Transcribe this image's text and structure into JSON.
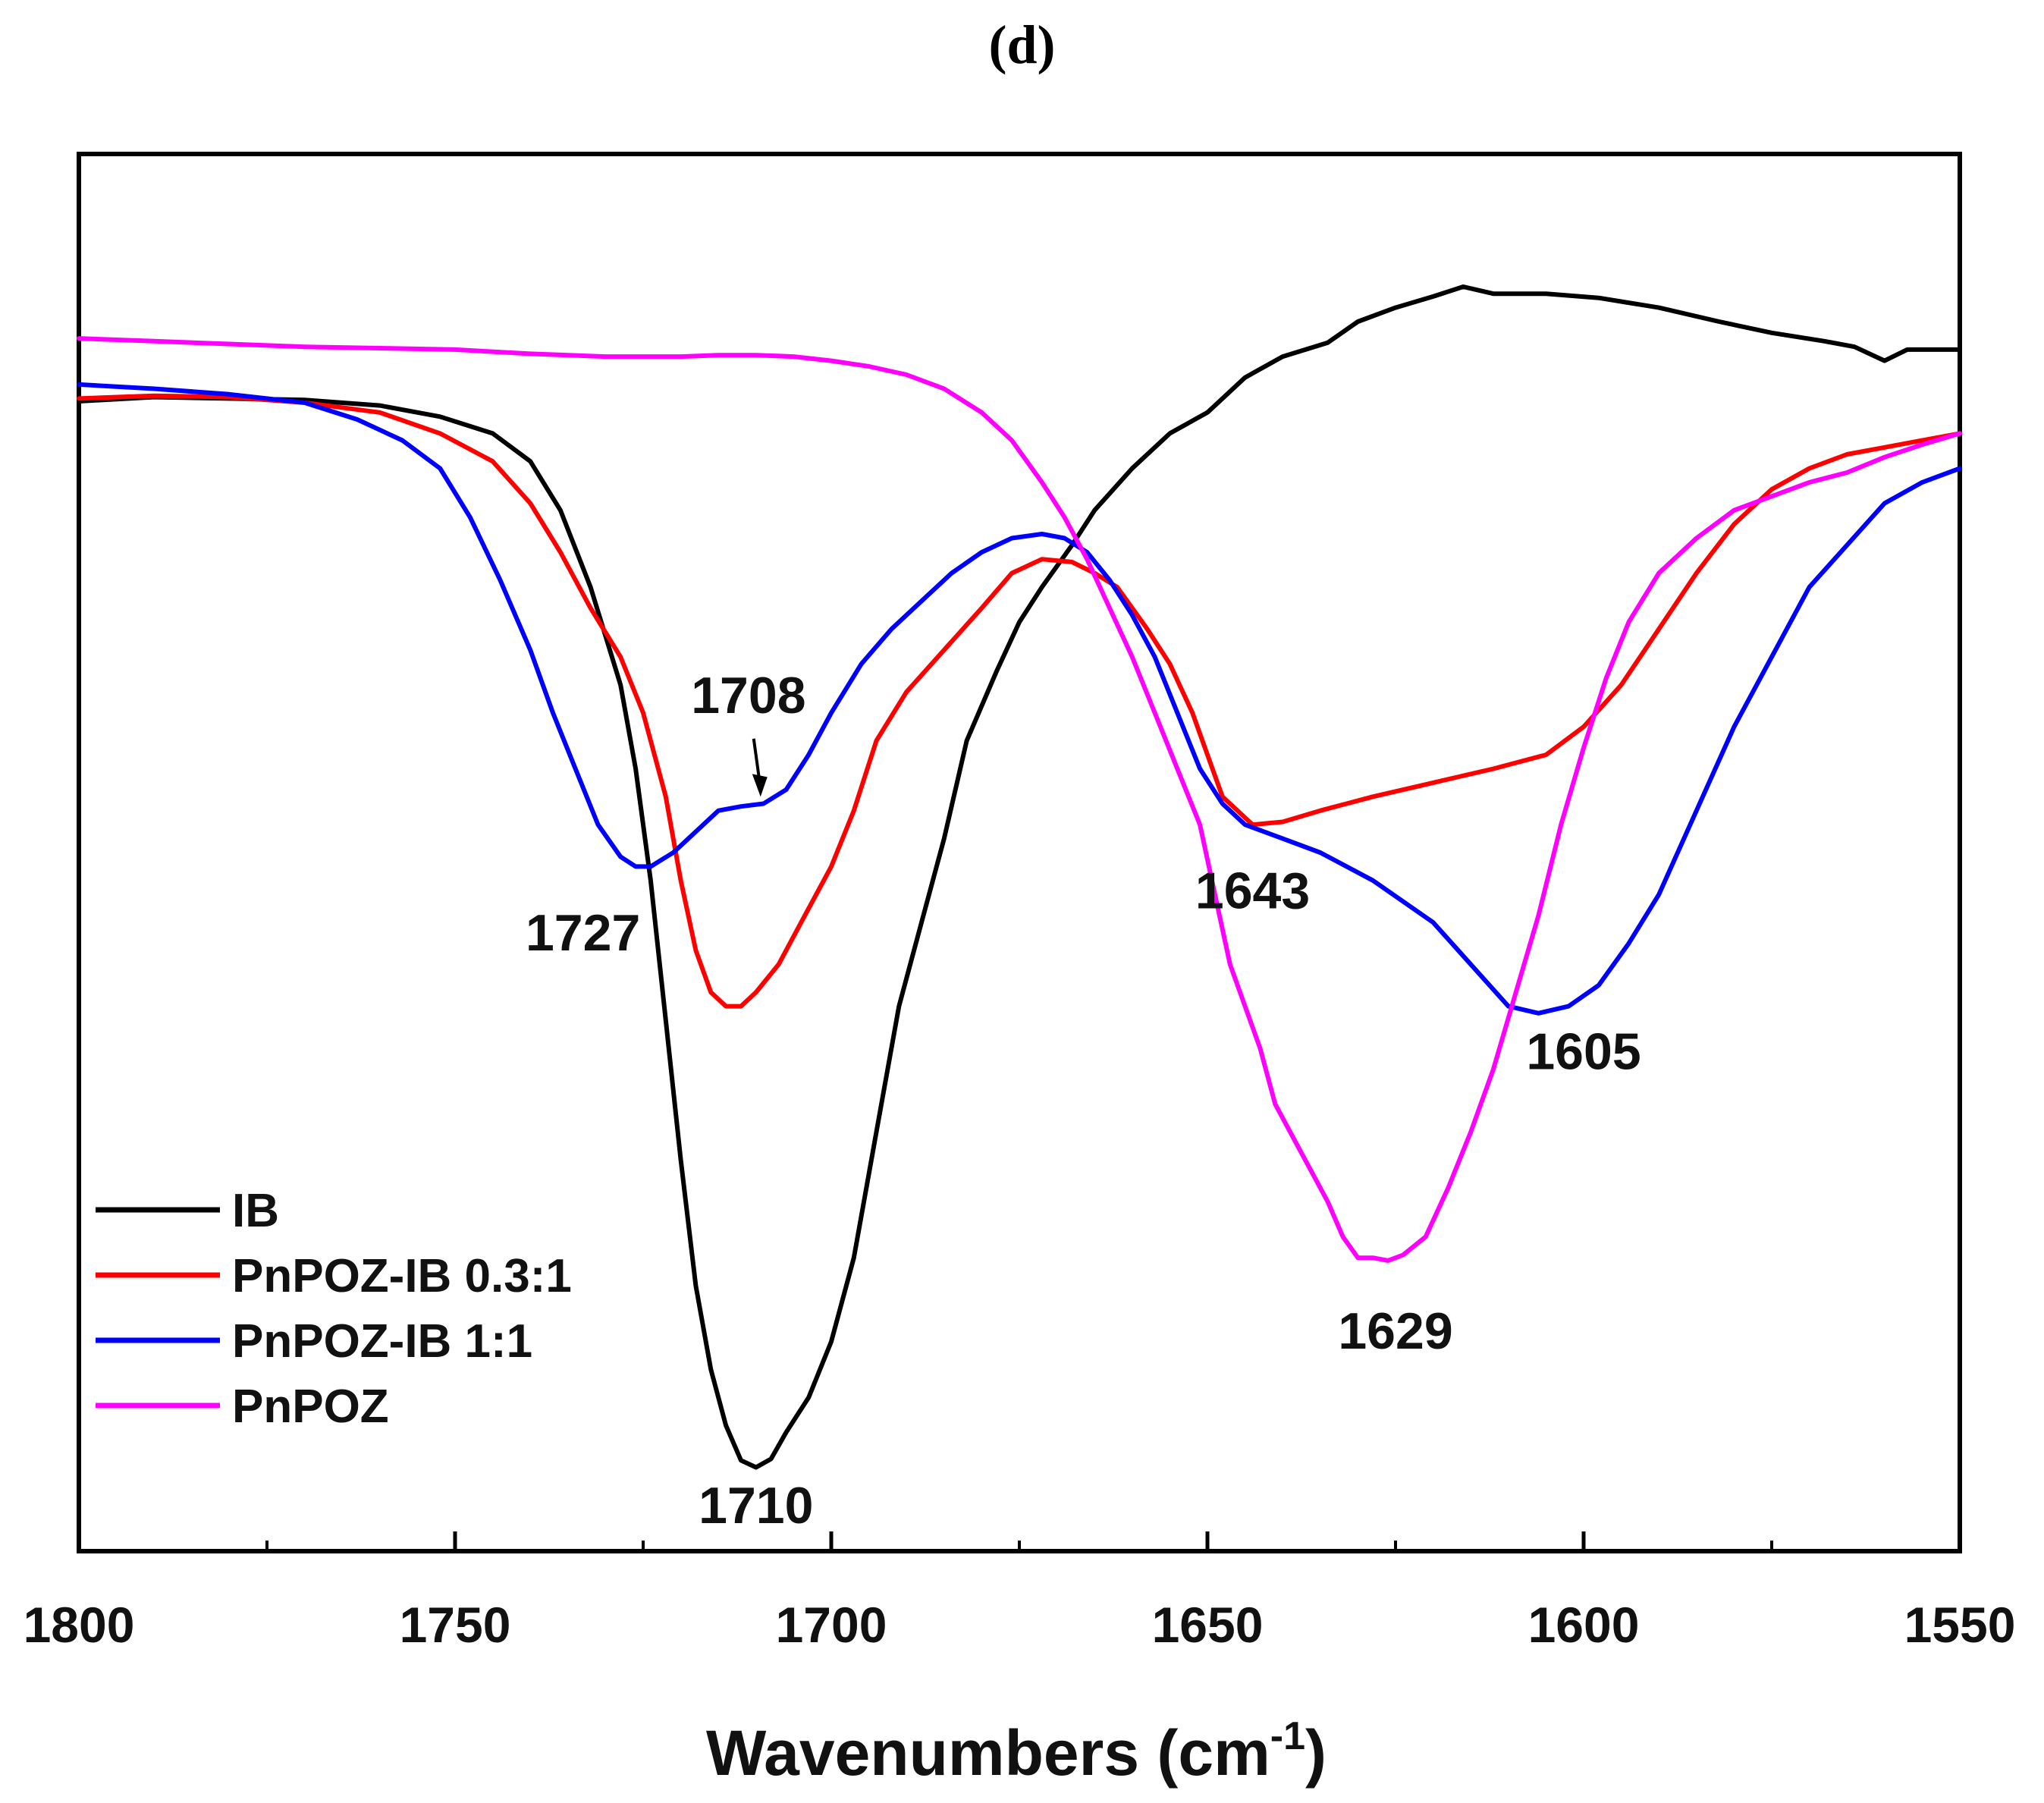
{
  "panel_label": "(d)",
  "chart_data": {
    "type": "line",
    "title": "",
    "xlabel": "Wavenumbers (cm",
    "xlabel_superscript": "-1",
    "xlabel_close": ")",
    "ylabel": "",
    "xlim": [
      1800,
      1550
    ],
    "ylim": [
      0,
      1
    ],
    "x_reversed": true,
    "y_ticks_shown": false,
    "grid": false,
    "legend_position": "lower-left",
    "xticks": [
      1800,
      1750,
      1700,
      1650,
      1600,
      1550
    ],
    "xticks_minor": [
      1775,
      1725,
      1675,
      1625,
      1575
    ],
    "series": [
      {
        "name": "IB",
        "color": "#000000",
        "points": [
          [
            1800,
            0.823
          ],
          [
            1790,
            0.826
          ],
          [
            1780,
            0.825
          ],
          [
            1770,
            0.824
          ],
          [
            1760,
            0.82
          ],
          [
            1752,
            0.812
          ],
          [
            1745,
            0.8
          ],
          [
            1740,
            0.78
          ],
          [
            1736,
            0.745
          ],
          [
            1732,
            0.69
          ],
          [
            1728,
            0.62
          ],
          [
            1726,
            0.56
          ],
          [
            1724,
            0.48
          ],
          [
            1722,
            0.38
          ],
          [
            1720,
            0.28
          ],
          [
            1718,
            0.19
          ],
          [
            1716,
            0.13
          ],
          [
            1714,
            0.09
          ],
          [
            1712,
            0.065
          ],
          [
            1710,
            0.06
          ],
          [
            1708,
            0.066
          ],
          [
            1706,
            0.085
          ],
          [
            1703,
            0.11
          ],
          [
            1700,
            0.15
          ],
          [
            1697,
            0.21
          ],
          [
            1694,
            0.3
          ],
          [
            1691,
            0.39
          ],
          [
            1688,
            0.45
          ],
          [
            1685,
            0.51
          ],
          [
            1682,
            0.58
          ],
          [
            1678,
            0.63
          ],
          [
            1675,
            0.665
          ],
          [
            1672,
            0.69
          ],
          [
            1668,
            0.72
          ],
          [
            1665,
            0.745
          ],
          [
            1660,
            0.775
          ],
          [
            1655,
            0.8
          ],
          [
            1650,
            0.815
          ],
          [
            1645,
            0.84
          ],
          [
            1640,
            0.855
          ],
          [
            1634,
            0.865
          ],
          [
            1630,
            0.88
          ],
          [
            1625,
            0.89
          ],
          [
            1620,
            0.898
          ],
          [
            1616,
            0.905
          ],
          [
            1612,
            0.9
          ],
          [
            1605,
            0.9
          ],
          [
            1598,
            0.897
          ],
          [
            1590,
            0.89
          ],
          [
            1582,
            0.88
          ],
          [
            1575,
            0.872
          ],
          [
            1568,
            0.866
          ],
          [
            1564,
            0.862
          ],
          [
            1560,
            0.852
          ],
          [
            1557,
            0.86
          ],
          [
            1550,
            0.86
          ]
        ]
      },
      {
        "name": "PnPOZ-IB 0.3:1",
        "color": "#ff0000",
        "points": [
          [
            1800,
            0.825
          ],
          [
            1790,
            0.827
          ],
          [
            1780,
            0.826
          ],
          [
            1770,
            0.822
          ],
          [
            1760,
            0.815
          ],
          [
            1752,
            0.8
          ],
          [
            1745,
            0.78
          ],
          [
            1740,
            0.75
          ],
          [
            1736,
            0.715
          ],
          [
            1732,
            0.675
          ],
          [
            1728,
            0.64
          ],
          [
            1725,
            0.6
          ],
          [
            1722,
            0.54
          ],
          [
            1720,
            0.48
          ],
          [
            1718,
            0.43
          ],
          [
            1716,
            0.4
          ],
          [
            1714,
            0.39
          ],
          [
            1712,
            0.39
          ],
          [
            1710,
            0.4
          ],
          [
            1707,
            0.42
          ],
          [
            1704,
            0.45
          ],
          [
            1700,
            0.49
          ],
          [
            1697,
            0.53
          ],
          [
            1694,
            0.58
          ],
          [
            1690,
            0.615
          ],
          [
            1685,
            0.645
          ],
          [
            1680,
            0.675
          ],
          [
            1676,
            0.7
          ],
          [
            1672,
            0.71
          ],
          [
            1668,
            0.708
          ],
          [
            1665,
            0.7
          ],
          [
            1662,
            0.69
          ],
          [
            1658,
            0.66
          ],
          [
            1655,
            0.635
          ],
          [
            1652,
            0.6
          ],
          [
            1648,
            0.54
          ],
          [
            1644,
            0.52
          ],
          [
            1640,
            0.522
          ],
          [
            1635,
            0.53
          ],
          [
            1628,
            0.54
          ],
          [
            1620,
            0.55
          ],
          [
            1612,
            0.56
          ],
          [
            1605,
            0.57
          ],
          [
            1600,
            0.59
          ],
          [
            1595,
            0.62
          ],
          [
            1590,
            0.66
          ],
          [
            1585,
            0.7
          ],
          [
            1580,
            0.735
          ],
          [
            1575,
            0.76
          ],
          [
            1570,
            0.775
          ],
          [
            1565,
            0.785
          ],
          [
            1560,
            0.79
          ],
          [
            1555,
            0.795
          ],
          [
            1550,
            0.8
          ]
        ]
      },
      {
        "name": "PnPOZ-IB 1:1",
        "color": "#0000ff",
        "points": [
          [
            1800,
            0.835
          ],
          [
            1790,
            0.832
          ],
          [
            1780,
            0.828
          ],
          [
            1770,
            0.822
          ],
          [
            1763,
            0.81
          ],
          [
            1757,
            0.795
          ],
          [
            1752,
            0.775
          ],
          [
            1748,
            0.74
          ],
          [
            1744,
            0.695
          ],
          [
            1740,
            0.645
          ],
          [
            1737,
            0.6
          ],
          [
            1734,
            0.56
          ],
          [
            1731,
            0.52
          ],
          [
            1728,
            0.497
          ],
          [
            1726,
            0.49
          ],
          [
            1724,
            0.49
          ],
          [
            1721,
            0.5
          ],
          [
            1718,
            0.515
          ],
          [
            1715,
            0.53
          ],
          [
            1712,
            0.533
          ],
          [
            1709,
            0.535
          ],
          [
            1706,
            0.545
          ],
          [
            1703,
            0.57
          ],
          [
            1700,
            0.6
          ],
          [
            1696,
            0.635
          ],
          [
            1692,
            0.66
          ],
          [
            1688,
            0.68
          ],
          [
            1684,
            0.7
          ],
          [
            1680,
            0.715
          ],
          [
            1676,
            0.725
          ],
          [
            1672,
            0.728
          ],
          [
            1669,
            0.725
          ],
          [
            1666,
            0.715
          ],
          [
            1663,
            0.695
          ],
          [
            1660,
            0.67
          ],
          [
            1657,
            0.64
          ],
          [
            1654,
            0.6
          ],
          [
            1651,
            0.56
          ],
          [
            1648,
            0.535
          ],
          [
            1645,
            0.52
          ],
          [
            1640,
            0.51
          ],
          [
            1635,
            0.5
          ],
          [
            1628,
            0.48
          ],
          [
            1620,
            0.45
          ],
          [
            1615,
            0.42
          ],
          [
            1610,
            0.39
          ],
          [
            1606,
            0.385
          ],
          [
            1602,
            0.39
          ],
          [
            1598,
            0.405
          ],
          [
            1594,
            0.435
          ],
          [
            1590,
            0.47
          ],
          [
            1585,
            0.53
          ],
          [
            1580,
            0.59
          ],
          [
            1575,
            0.64
          ],
          [
            1570,
            0.69
          ],
          [
            1565,
            0.72
          ],
          [
            1560,
            0.75
          ],
          [
            1555,
            0.765
          ],
          [
            1550,
            0.775
          ]
        ]
      },
      {
        "name": "PnPOZ",
        "color": "#ff00ff",
        "points": [
          [
            1800,
            0.868
          ],
          [
            1790,
            0.866
          ],
          [
            1780,
            0.864
          ],
          [
            1770,
            0.862
          ],
          [
            1760,
            0.861
          ],
          [
            1750,
            0.86
          ],
          [
            1740,
            0.857
          ],
          [
            1730,
            0.855
          ],
          [
            1720,
            0.855
          ],
          [
            1715,
            0.856
          ],
          [
            1710,
            0.856
          ],
          [
            1705,
            0.855
          ],
          [
            1700,
            0.852
          ],
          [
            1695,
            0.848
          ],
          [
            1690,
            0.842
          ],
          [
            1685,
            0.832
          ],
          [
            1680,
            0.815
          ],
          [
            1676,
            0.795
          ],
          [
            1672,
            0.765
          ],
          [
            1669,
            0.74
          ],
          [
            1666,
            0.71
          ],
          [
            1663,
            0.675
          ],
          [
            1660,
            0.64
          ],
          [
            1657,
            0.6
          ],
          [
            1654,
            0.56
          ],
          [
            1651,
            0.52
          ],
          [
            1649,
            0.47
          ],
          [
            1647,
            0.42
          ],
          [
            1645,
            0.39
          ],
          [
            1643,
            0.36
          ],
          [
            1641,
            0.32
          ],
          [
            1638,
            0.29
          ],
          [
            1636,
            0.27
          ],
          [
            1634,
            0.25
          ],
          [
            1632,
            0.225
          ],
          [
            1630,
            0.21
          ],
          [
            1628,
            0.21
          ],
          [
            1626,
            0.208
          ],
          [
            1624,
            0.212
          ],
          [
            1621,
            0.225
          ],
          [
            1618,
            0.26
          ],
          [
            1615,
            0.3
          ],
          [
            1612,
            0.345
          ],
          [
            1609,
            0.4
          ],
          [
            1606,
            0.455
          ],
          [
            1603,
            0.52
          ],
          [
            1600,
            0.575
          ],
          [
            1597,
            0.625
          ],
          [
            1594,
            0.665
          ],
          [
            1590,
            0.7
          ],
          [
            1585,
            0.725
          ],
          [
            1580,
            0.745
          ],
          [
            1575,
            0.755
          ],
          [
            1570,
            0.765
          ],
          [
            1565,
            0.772
          ],
          [
            1560,
            0.783
          ],
          [
            1555,
            0.792
          ],
          [
            1550,
            0.8
          ]
        ]
      }
    ],
    "annotations": [
      {
        "text": "1708",
        "x": 1711,
        "y": 0.6,
        "arrow_to": [
          1709.5,
          0.54
        ]
      },
      {
        "text": "1727",
        "x": 1733,
        "y": 0.43
      },
      {
        "text": "1643",
        "x": 1644,
        "y": 0.46
      },
      {
        "text": "1605",
        "x": 1600,
        "y": 0.345
      },
      {
        "text": "1629",
        "x": 1625,
        "y": 0.145
      },
      {
        "text": "1710",
        "x": 1710,
        "y": 0.02
      }
    ]
  }
}
